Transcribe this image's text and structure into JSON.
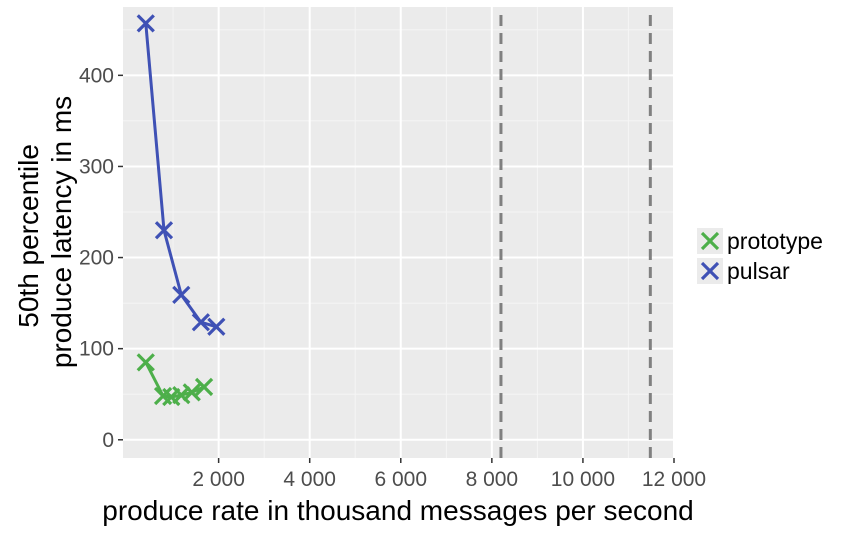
{
  "chart_data": {
    "type": "line",
    "title": "",
    "xlabel": "produce rate in thousand messages per second",
    "ylabel": [
      "50th percentile",
      "produce latency in ms"
    ],
    "xlim": [
      -100,
      12000
    ],
    "ylim": [
      -20,
      475
    ],
    "x_ticks": [
      {
        "value": 2000,
        "label": "2 000"
      },
      {
        "value": 4000,
        "label": "4 000"
      },
      {
        "value": 6000,
        "label": "6 000"
      },
      {
        "value": 8000,
        "label": "8 000"
      },
      {
        "value": 10000,
        "label": "10 000"
      },
      {
        "value": 12000,
        "label": "12 000"
      }
    ],
    "y_ticks": [
      {
        "value": 0,
        "label": "0"
      },
      {
        "value": 100,
        "label": "100"
      },
      {
        "value": 200,
        "label": "200"
      },
      {
        "value": 300,
        "label": "300"
      },
      {
        "value": 400,
        "label": "400"
      }
    ],
    "grid": true,
    "legend_position": "right",
    "reference_lines": [
      {
        "orientation": "vertical",
        "x": 8200,
        "style": "dashed",
        "color": "#808080"
      },
      {
        "orientation": "vertical",
        "x": 11480,
        "style": "dashed",
        "color": "#808080"
      }
    ],
    "series": [
      {
        "name": "prototype",
        "color": "#4daf4a",
        "marker": "x",
        "x": [
          400,
          780,
          960,
          1180,
          1410,
          1680
        ],
        "y": [
          85,
          48,
          47,
          49,
          52,
          58
        ]
      },
      {
        "name": "pulsar",
        "color": "#3f51b5",
        "marker": "x",
        "x": [
          400,
          800,
          1180,
          1610,
          1950
        ],
        "y": [
          457,
          230,
          159,
          129,
          124
        ]
      }
    ]
  }
}
